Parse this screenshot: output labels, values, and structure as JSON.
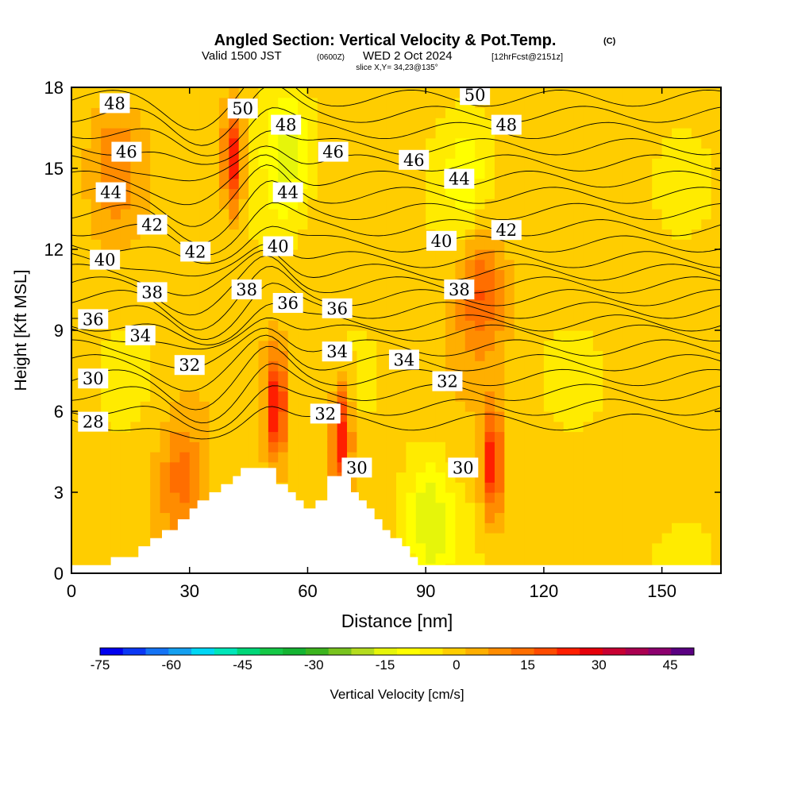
{
  "title": {
    "main": "Angled Section: Vertical Velocity & Pot.Temp.",
    "copyright": "(C)",
    "valid_prefix": "Valid 1500 JST",
    "valid_utc": "(0600Z)",
    "valid_date": "WED 2 Oct 2024",
    "forecast": "[12hrFcst@2151z]",
    "slice": "slice X,Y= 34,23@135°"
  },
  "colorbar": {
    "title": "Vertical Velocity [cm/s]",
    "tick_labels": [
      "-75",
      "-60",
      "-45",
      "-30",
      "-15",
      "0",
      "15",
      "30",
      "45"
    ],
    "bins": [
      -75,
      -70,
      -65,
      -60,
      -55,
      -50,
      -45,
      -40,
      -35,
      -30,
      -25,
      -20,
      -15,
      -10,
      -5,
      0,
      5,
      10,
      15,
      20,
      25,
      30,
      35,
      40,
      45,
      50
    ],
    "colors": [
      "#0000f0",
      "#0a37f5",
      "#1473f5",
      "#14a0f0",
      "#00d7f5",
      "#00e6b9",
      "#00d778",
      "#14c846",
      "#14b432",
      "#3cb41e",
      "#78c31e",
      "#b4dc1e",
      "#e6f50a",
      "#ffff00",
      "#ffeb00",
      "#ffcd00",
      "#ffaf00",
      "#ff8c00",
      "#ff6e00",
      "#ff4b00",
      "#ff1e00",
      "#e6000a",
      "#c80032",
      "#aa0050",
      "#8c006e",
      "#5a0082"
    ]
  },
  "chart_data": {
    "type": "heatmap",
    "title": "Angled Section: Vertical Velocity & Pot.Temp.",
    "xlabel": "Distance [nm]",
    "ylabel": "Height [Kft MSL]",
    "xlim": [
      0,
      165
    ],
    "ylim": [
      0,
      18
    ],
    "x_ticks": [
      0,
      30,
      60,
      90,
      120,
      150
    ],
    "y_ticks": [
      0,
      3,
      6,
      9,
      12,
      15,
      18
    ],
    "field": "Vertical Velocity [cm/s]",
    "background_velocity": 2,
    "vertical_velocity_features": [
      {
        "x": 41,
        "y": 15.3,
        "peak": 30
      },
      {
        "x": 11,
        "y": 15,
        "peak": 10
      },
      {
        "x": 52,
        "y": 6.2,
        "peak": 28
      },
      {
        "x": 68.5,
        "y": 5,
        "peak": 30
      },
      {
        "x": 107,
        "y": 4,
        "peak": 28
      },
      {
        "x": 104,
        "y": 10.5,
        "peak": 18
      },
      {
        "x": 28,
        "y": 3.5,
        "peak": 15
      },
      {
        "x": 55,
        "y": 15.5,
        "peak": -15
      },
      {
        "x": 91,
        "y": 2,
        "peak": -15
      },
      {
        "x": 100,
        "y": 14.5,
        "peak": -8
      }
    ],
    "terrain_heights_kft": [
      [
        0,
        0.3
      ],
      [
        10,
        0.3
      ],
      [
        10,
        0.6
      ],
      [
        17,
        0.6
      ],
      [
        17,
        1.0
      ],
      [
        20,
        1.0
      ],
      [
        20,
        1.3
      ],
      [
        23,
        1.3
      ],
      [
        23,
        1.6
      ],
      [
        27,
        1.6
      ],
      [
        27,
        2.0
      ],
      [
        30,
        2.0
      ],
      [
        30,
        2.4
      ],
      [
        32,
        2.4
      ],
      [
        32,
        2.7
      ],
      [
        35,
        2.7
      ],
      [
        35,
        3.0
      ],
      [
        38,
        3.0
      ],
      [
        38,
        3.3
      ],
      [
        41,
        3.3
      ],
      [
        41,
        3.6
      ],
      [
        43,
        3.6
      ],
      [
        43,
        3.9
      ],
      [
        52,
        3.9
      ],
      [
        52,
        3.3
      ],
      [
        55,
        3.3
      ],
      [
        55,
        3.0
      ],
      [
        57,
        3.0
      ],
      [
        57,
        2.7
      ],
      [
        59,
        2.7
      ],
      [
        59,
        2.4
      ],
      [
        62,
        2.4
      ],
      [
        62,
        2.7
      ],
      [
        65,
        2.7
      ],
      [
        65,
        3.6
      ],
      [
        71,
        3.6
      ],
      [
        71,
        3.0
      ],
      [
        73,
        3.0
      ],
      [
        73,
        2.7
      ],
      [
        75,
        2.7
      ],
      [
        75,
        2.4
      ],
      [
        77,
        2.4
      ],
      [
        77,
        2.0
      ],
      [
        79,
        2.0
      ],
      [
        79,
        1.6
      ],
      [
        81,
        1.6
      ],
      [
        81,
        1.3
      ],
      [
        84,
        1.3
      ],
      [
        84,
        1.0
      ],
      [
        86,
        1.0
      ],
      [
        86,
        0.6
      ],
      [
        88,
        0.6
      ],
      [
        88,
        0.3
      ],
      [
        165,
        0.3
      ]
    ],
    "theta_contour_labels": [
      {
        "value": "48",
        "x": 11,
        "y": 17.4
      },
      {
        "value": "46",
        "x": 14,
        "y": 15.6
      },
      {
        "value": "44",
        "x": 10,
        "y": 14.1
      },
      {
        "value": "42",
        "x": 20.5,
        "y": 12.9
      },
      {
        "value": "42",
        "x": 31.5,
        "y": 11.9
      },
      {
        "value": "40",
        "x": 8.5,
        "y": 11.6
      },
      {
        "value": "38",
        "x": 20.5,
        "y": 10.4
      },
      {
        "value": "36",
        "x": 5.5,
        "y": 9.4
      },
      {
        "value": "34",
        "x": 17.5,
        "y": 8.8
      },
      {
        "value": "32",
        "x": 30,
        "y": 7.7
      },
      {
        "value": "30",
        "x": 5.5,
        "y": 7.2
      },
      {
        "value": "28",
        "x": 5.5,
        "y": 5.6
      },
      {
        "value": "50",
        "x": 43.5,
        "y": 17.2
      },
      {
        "value": "48",
        "x": 54.5,
        "y": 16.6
      },
      {
        "value": "46",
        "x": 66.5,
        "y": 15.6
      },
      {
        "value": "44",
        "x": 55,
        "y": 14.1
      },
      {
        "value": "40",
        "x": 52.5,
        "y": 12.1
      },
      {
        "value": "38",
        "x": 44.5,
        "y": 10.5
      },
      {
        "value": "36",
        "x": 55,
        "y": 10
      },
      {
        "value": "36",
        "x": 67.5,
        "y": 9.8
      },
      {
        "value": "34",
        "x": 67.5,
        "y": 8.2
      },
      {
        "value": "32",
        "x": 64.5,
        "y": 5.9
      },
      {
        "value": "30",
        "x": 72.5,
        "y": 3.9
      },
      {
        "value": "50",
        "x": 102.5,
        "y": 17.7
      },
      {
        "value": "48",
        "x": 110.5,
        "y": 16.6
      },
      {
        "value": "46",
        "x": 87,
        "y": 15.3
      },
      {
        "value": "44",
        "x": 98.5,
        "y": 14.6
      },
      {
        "value": "42",
        "x": 110.5,
        "y": 12.7
      },
      {
        "value": "40",
        "x": 94,
        "y": 12.3
      },
      {
        "value": "38",
        "x": 98.5,
        "y": 10.5
      },
      {
        "value": "34",
        "x": 84.5,
        "y": 7.9
      },
      {
        "value": "32",
        "x": 95.5,
        "y": 7.1
      },
      {
        "value": "30",
        "x": 99.5,
        "y": 3.9
      }
    ],
    "theta_contour_levels": [
      28,
      29,
      30,
      31,
      32,
      33,
      34,
      35,
      36,
      37,
      38,
      39,
      40,
      41,
      42,
      43,
      44,
      45,
      46,
      47,
      48,
      49,
      50
    ]
  }
}
